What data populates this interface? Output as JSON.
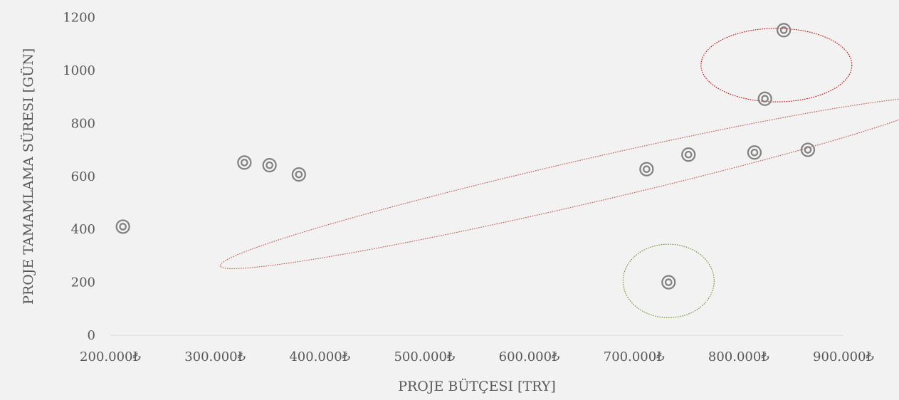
{
  "chart_data": {
    "type": "scatter",
    "title": "",
    "xlabel": "PROJE BÜTÇESI [TRY]",
    "ylabel": "PROJE TAMAMLAMA SÜRESI [GÜN]",
    "xlim": [
      200000,
      900000
    ],
    "ylim": [
      0,
      1200
    ],
    "x_ticks": [
      200000,
      300000,
      400000,
      500000,
      600000,
      700000,
      800000,
      900000
    ],
    "x_tick_labels": [
      "200.000₺",
      "300.000₺",
      "400.000₺",
      "500.000₺",
      "600.000₺",
      "700.000₺",
      "800.000₺",
      "900.000₺"
    ],
    "y_ticks": [
      0,
      200,
      400,
      600,
      800,
      1000,
      1200
    ],
    "y_tick_labels": [
      "0",
      "200",
      "400",
      "600",
      "800",
      "1000",
      "1200"
    ],
    "grid": false,
    "legend": "none",
    "marker_color": "#808080",
    "points": [
      {
        "x": 212000,
        "y": 410
      },
      {
        "x": 328000,
        "y": 652
      },
      {
        "x": 352000,
        "y": 642
      },
      {
        "x": 380000,
        "y": 607
      },
      {
        "x": 712000,
        "y": 627
      },
      {
        "x": 733000,
        "y": 200
      },
      {
        "x": 752000,
        "y": 682
      },
      {
        "x": 815000,
        "y": 690
      },
      {
        "x": 825000,
        "y": 893
      },
      {
        "x": 843000,
        "y": 1152
      },
      {
        "x": 866000,
        "y": 700
      }
    ],
    "cluster_annotations": [
      {
        "shape": "ellipse",
        "color": "#c0504d",
        "style": "dotted",
        "center": {
          "x": 648000,
          "y": 575
        },
        "radius_x": 352000,
        "radius_y": 230,
        "rotation_deg": -13
      },
      {
        "shape": "ellipse",
        "color": "#c00000",
        "style": "dotted",
        "center": {
          "x": 836000,
          "y": 1020
        },
        "radius_x": 72000,
        "radius_y": 375,
        "rotation_deg": 0
      },
      {
        "shape": "ellipse",
        "color": "#6b8e23",
        "style": "dotted",
        "center": {
          "x": 733000,
          "y": 205
        },
        "radius_x": 43500,
        "radius_y": 375,
        "rotation_deg": 0
      }
    ],
    "axis_color": "#d9d9d9",
    "text_color": "#595959",
    "background": "#f2f2f2"
  }
}
